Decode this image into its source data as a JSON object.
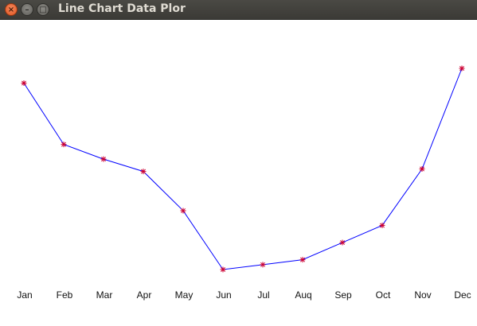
{
  "window": {
    "title": "Line Chart Data Plor",
    "close_glyph": "×",
    "minimize_glyph": "–",
    "maximize_glyph": "□"
  },
  "chart_data": {
    "type": "line",
    "title": "",
    "xlabel": "",
    "ylabel": "",
    "grid": false,
    "legend": "none",
    "categories": [
      "Jan",
      "Feb",
      "Mar",
      "Apr",
      "May",
      "Jun",
      "Jul",
      "Auq",
      "Sep",
      "Oct",
      "Nov",
      "Dec"
    ],
    "series": [
      {
        "values": [
          76,
          51,
          45,
          40,
          24,
          0,
          2,
          4,
          11,
          18,
          41,
          82
        ],
        "line_color": "#0000ff",
        "marker": "asterisk",
        "marker_color": "#cc0033"
      }
    ],
    "ylim": [
      0,
      82
    ]
  }
}
